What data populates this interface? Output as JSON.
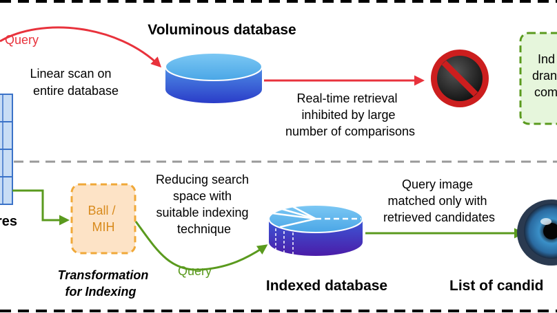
{
  "top": {
    "title": "Voluminous database",
    "query_label": "Query",
    "linear_scan": [
      "Linear scan on",
      "entire database"
    ],
    "realtime": [
      "Real-time retrieval",
      "inhibited by large",
      "number of comparisons"
    ],
    "right_box": [
      "Ind",
      "dran",
      "com"
    ]
  },
  "left": {
    "features_label": "res"
  },
  "bottom": {
    "ball_mih": [
      "Ball /",
      "MIH"
    ],
    "transformation": [
      "Transformation",
      "for Indexing"
    ],
    "reducing": [
      "Reducing search",
      "space with",
      "suitable indexing",
      "technique"
    ],
    "query_label": "Query",
    "indexed_title": "Indexed database",
    "matched": [
      "Query image",
      "matched only with",
      "retrieved candidates"
    ],
    "candidates_title": "List of candid"
  },
  "colors": {
    "red_arrow": "#e8323c",
    "green_arrow": "#5a9a1e",
    "db_top": "#5ab4ec",
    "db_bottom": "#2a3cc8",
    "indexed_bottom": "#4a1ca8",
    "orange_fill": "#fde3c6",
    "orange_stroke": "#f0a838",
    "green_fill": "#e6f6dc",
    "green_stroke": "#5a9a1e",
    "grid_fill": "#c8ddf5",
    "grid_stroke": "#3a72c8",
    "no_sign_red": "#cc1e1e",
    "divider": "#999999"
  }
}
